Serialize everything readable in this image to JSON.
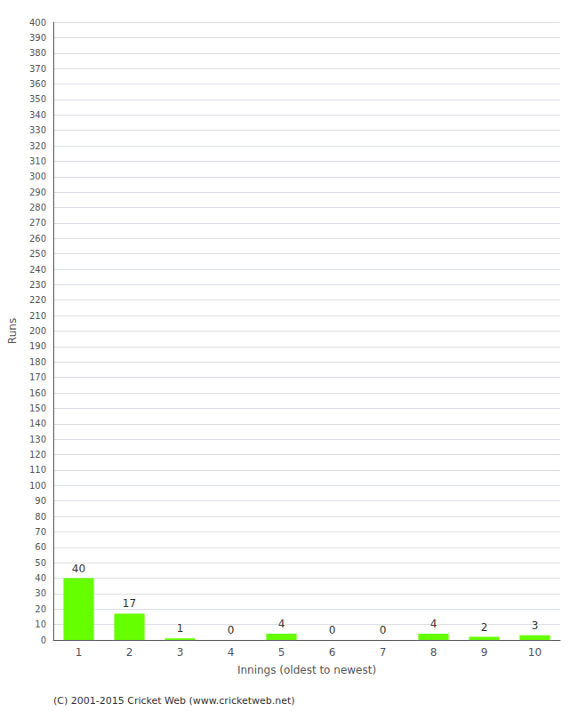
{
  "chart_data": {
    "type": "bar",
    "categories": [
      "1",
      "2",
      "3",
      "4",
      "5",
      "6",
      "7",
      "8",
      "9",
      "10"
    ],
    "values": [
      40,
      17,
      1,
      0,
      4,
      0,
      0,
      4,
      2,
      3
    ],
    "color": "#66ff00",
    "xlabel": "Innings (oldest to newest)",
    "ylabel": "Runs",
    "ylim": [
      0,
      400
    ],
    "yticks": [
      0,
      10,
      20,
      30,
      40,
      50,
      60,
      70,
      80,
      90,
      100,
      110,
      120,
      130,
      140,
      150,
      160,
      170,
      180,
      190,
      200,
      210,
      220,
      230,
      240,
      250,
      260,
      270,
      280,
      290,
      300,
      310,
      320,
      330,
      340,
      350,
      360,
      370,
      380,
      390,
      400
    ],
    "grid": true,
    "data_labels": true,
    "annotations": [
      "(C) 2001-2015 Cricket Web (www.cricketweb.net)"
    ]
  }
}
